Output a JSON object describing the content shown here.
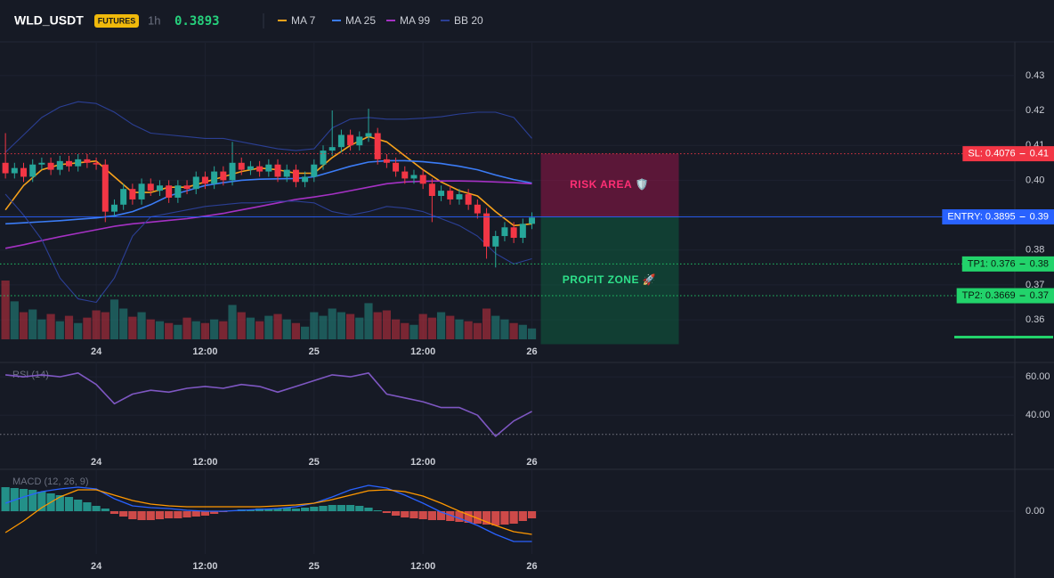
{
  "header": {
    "symbol": "WLD_USDT",
    "badge": "FUTURES",
    "interval": "1h",
    "price": 0.3893
  },
  "chart_data": [
    {
      "type": "candlestick",
      "x": [
        -10,
        -9,
        -8,
        -7,
        -6,
        -5,
        -4,
        -3,
        -2,
        -1,
        0,
        1,
        2,
        3,
        4,
        5,
        6,
        7,
        8,
        9,
        10,
        11,
        12,
        13,
        14,
        15,
        16,
        17,
        18,
        19,
        20,
        21,
        22,
        23,
        24,
        25,
        26,
        27,
        28,
        29,
        30,
        31,
        32,
        33,
        34,
        35,
        36,
        37,
        38,
        39,
        40,
        41,
        42,
        43,
        44,
        45,
        46,
        47,
        48
      ],
      "open": [
        0.405,
        0.402,
        0.4035,
        0.401,
        0.4045,
        0.405,
        0.403,
        0.4055,
        0.404,
        0.406,
        0.405,
        0.4045,
        0.391,
        0.393,
        0.3975,
        0.3945,
        0.399,
        0.397,
        0.3985,
        0.395,
        0.3985,
        0.3975,
        0.401,
        0.399,
        0.4025,
        0.4,
        0.405,
        0.403,
        0.404,
        0.4025,
        0.4045,
        0.401,
        0.403,
        0.3995,
        0.401,
        0.4045,
        0.4085,
        0.4095,
        0.413,
        0.41,
        0.4125,
        0.4135,
        0.406,
        0.405,
        0.4025,
        0.4005,
        0.4015,
        0.399,
        0.3955,
        0.397,
        0.3945,
        0.396,
        0.393,
        0.3905,
        0.381,
        0.384,
        0.3865,
        0.3835,
        0.3875
      ],
      "high": [
        0.4135,
        0.405,
        0.405,
        0.406,
        0.4065,
        0.4065,
        0.407,
        0.407,
        0.4075,
        0.4075,
        0.4065,
        0.406,
        0.3945,
        0.399,
        0.399,
        0.4005,
        0.4005,
        0.4,
        0.4,
        0.4,
        0.4,
        0.4025,
        0.4025,
        0.404,
        0.404,
        0.411,
        0.4065,
        0.4055,
        0.4055,
        0.406,
        0.406,
        0.4045,
        0.4045,
        0.4025,
        0.406,
        0.41,
        0.42,
        0.4145,
        0.4145,
        0.414,
        0.4205,
        0.415,
        0.4075,
        0.4065,
        0.404,
        0.403,
        0.403,
        0.4005,
        0.3985,
        0.3985,
        0.3975,
        0.3975,
        0.3945,
        0.392,
        0.3855,
        0.388,
        0.388,
        0.389,
        0.3908
      ],
      "low": [
        0.4005,
        0.4005,
        0.3995,
        0.3995,
        0.403,
        0.4015,
        0.4015,
        0.4025,
        0.4025,
        0.4035,
        0.403,
        0.388,
        0.3895,
        0.3915,
        0.393,
        0.393,
        0.3955,
        0.3955,
        0.3935,
        0.3935,
        0.396,
        0.396,
        0.3975,
        0.3975,
        0.3985,
        0.3985,
        0.4015,
        0.4015,
        0.401,
        0.401,
        0.3995,
        0.3995,
        0.398,
        0.398,
        0.3995,
        0.403,
        0.407,
        0.408,
        0.4085,
        0.4085,
        0.411,
        0.4045,
        0.4035,
        0.401,
        0.399,
        0.399,
        0.3975,
        0.388,
        0.394,
        0.393,
        0.393,
        0.3915,
        0.389,
        0.3775,
        0.375,
        0.3825,
        0.382,
        0.382,
        0.386
      ],
      "close": [
        0.402,
        0.4035,
        0.401,
        0.4045,
        0.405,
        0.403,
        0.4055,
        0.404,
        0.406,
        0.405,
        0.4045,
        0.391,
        0.393,
        0.3975,
        0.3945,
        0.399,
        0.397,
        0.3985,
        0.395,
        0.3985,
        0.3975,
        0.401,
        0.399,
        0.4025,
        0.4,
        0.405,
        0.403,
        0.404,
        0.4025,
        0.4045,
        0.401,
        0.403,
        0.3995,
        0.401,
        0.4045,
        0.4085,
        0.4095,
        0.413,
        0.41,
        0.4125,
        0.4135,
        0.406,
        0.405,
        0.4025,
        0.4005,
        0.4015,
        0.399,
        0.3955,
        0.397,
        0.3945,
        0.396,
        0.393,
        0.3905,
        0.381,
        0.384,
        0.3865,
        0.3835,
        0.3875,
        0.3893
      ],
      "volume": [
        65,
        42,
        30,
        33,
        22,
        28,
        20,
        26,
        18,
        24,
        32,
        30,
        44,
        34,
        25,
        30,
        22,
        20,
        18,
        16,
        24,
        20,
        18,
        22,
        20,
        38,
        30,
        24,
        20,
        26,
        28,
        22,
        18,
        14,
        30,
        26,
        34,
        30,
        28,
        24,
        40,
        30,
        32,
        22,
        18,
        16,
        28,
        24,
        30,
        26,
        22,
        20,
        18,
        34,
        26,
        22,
        18,
        16,
        12
      ],
      "up_color": "#26a69a",
      "down_color": "#f23645",
      "series": [
        {
          "name": "MA 7",
          "color": "#f7a21b",
          "x": [
            -10,
            -8,
            -6,
            -4,
            -2,
            0,
            2,
            4,
            6,
            8,
            10,
            12,
            14,
            16,
            18,
            20,
            22,
            24,
            26,
            28,
            30,
            32,
            34,
            36,
            38,
            40,
            42,
            44,
            46,
            48
          ],
          "values": [
            0.3915,
            0.3985,
            0.403,
            0.4045,
            0.405,
            0.4055,
            0.401,
            0.3965,
            0.3965,
            0.398,
            0.398,
            0.3995,
            0.401,
            0.4025,
            0.4035,
            0.403,
            0.402,
            0.402,
            0.4065,
            0.41,
            0.4125,
            0.411,
            0.407,
            0.403,
            0.3995,
            0.397,
            0.3955,
            0.391,
            0.387,
            0.3875
          ]
        },
        {
          "name": "MA 25",
          "color": "#3b7cf6",
          "x": [
            -10,
            -8,
            -6,
            -4,
            -2,
            0,
            2,
            4,
            6,
            8,
            10,
            12,
            14,
            16,
            18,
            20,
            22,
            24,
            26,
            28,
            30,
            32,
            34,
            36,
            38,
            40,
            42,
            44,
            46,
            48
          ],
          "values": [
            0.3875,
            0.3878,
            0.3881,
            0.3884,
            0.3888,
            0.3892,
            0.3898,
            0.391,
            0.393,
            0.3955,
            0.397,
            0.3985,
            0.3993,
            0.4,
            0.4003,
            0.4004,
            0.4005,
            0.401,
            0.4025,
            0.404,
            0.4052,
            0.4056,
            0.4056,
            0.4053,
            0.4048,
            0.404,
            0.403,
            0.4015,
            0.4002,
            0.3992
          ]
        },
        {
          "name": "MA 99",
          "color": "#a531c4",
          "x": [
            -10,
            -8,
            -6,
            -4,
            -2,
            0,
            2,
            4,
            6,
            8,
            10,
            12,
            14,
            16,
            18,
            20,
            22,
            24,
            26,
            28,
            30,
            32,
            34,
            36,
            38,
            40,
            42,
            44,
            46,
            48
          ],
          "values": [
            0.3805,
            0.3815,
            0.3827,
            0.3838,
            0.3848,
            0.3858,
            0.3868,
            0.3875,
            0.388,
            0.3885,
            0.389,
            0.3897,
            0.3905,
            0.3915,
            0.3925,
            0.3935,
            0.3945,
            0.3952,
            0.396,
            0.397,
            0.398,
            0.399,
            0.3995,
            0.3997,
            0.3998,
            0.3998,
            0.3997,
            0.3995,
            0.3993,
            0.399
          ]
        },
        {
          "name": "BB 20",
          "color": "#2b3f94",
          "x": [
            -10,
            -8,
            -6,
            -4,
            -2,
            0,
            2,
            4,
            6,
            8,
            10,
            12,
            14,
            16,
            18,
            20,
            22,
            24,
            26,
            28,
            30,
            32,
            34,
            36,
            38,
            40,
            42,
            44,
            46,
            48
          ],
          "upper": [
            0.408,
            0.413,
            0.418,
            0.421,
            0.4225,
            0.422,
            0.4195,
            0.416,
            0.4135,
            0.413,
            0.4125,
            0.412,
            0.412,
            0.411,
            0.41,
            0.409,
            0.4085,
            0.409,
            0.415,
            0.4175,
            0.418,
            0.4175,
            0.4175,
            0.4178,
            0.4182,
            0.419,
            0.4195,
            0.4195,
            0.418,
            0.412
          ],
          "lower": [
            0.396,
            0.39,
            0.383,
            0.372,
            0.366,
            0.365,
            0.372,
            0.384,
            0.3895,
            0.3905,
            0.3915,
            0.3925,
            0.393,
            0.3935,
            0.3935,
            0.394,
            0.394,
            0.3935,
            0.391,
            0.39,
            0.391,
            0.3925,
            0.392,
            0.391,
            0.389,
            0.387,
            0.384,
            0.379,
            0.376,
            0.3775
          ]
        }
      ],
      "xlim": [
        -10.6,
        101.2
      ],
      "xticks": [
        {
          "value": 0,
          "label": "24"
        },
        {
          "value": 12,
          "label": "12:00"
        },
        {
          "value": 24,
          "label": "25"
        },
        {
          "value": 36,
          "label": "12:00"
        },
        {
          "value": 48,
          "label": "26"
        }
      ],
      "ylim": [
        0.3544,
        0.4389
      ],
      "yticks": [
        {
          "value": 0.36,
          "label": "0.36"
        },
        {
          "value": 0.37,
          "label": "0.37"
        },
        {
          "value": 0.38,
          "label": "0.38"
        },
        {
          "value": 0.39,
          "label": "0.39"
        },
        {
          "value": 0.4,
          "label": "0.40"
        },
        {
          "value": 0.41,
          "label": "0.41"
        },
        {
          "value": 0.42,
          "label": "0.42"
        },
        {
          "value": 0.43,
          "label": "0.43"
        }
      ],
      "grid": true,
      "levels": [
        {
          "label": "SL: 0.4076",
          "value": 0.4076,
          "axis_label": "0.41",
          "color": "#f23645",
          "text_color": "#ffffff",
          "style": "dotted"
        },
        {
          "label": "ENTRY: 0.3895",
          "value": 0.3895,
          "axis_label": "0.39",
          "color": "#2962ff",
          "text_color": "#ffffff",
          "style": "solid"
        },
        {
          "label": "TP1: 0.376",
          "value": 0.376,
          "axis_label": "0.38",
          "color": "#22d36b",
          "text_color": "#0b1a10",
          "style": "dotted"
        },
        {
          "label": "TP2: 0.3669",
          "value": 0.3669,
          "axis_label": "0.37",
          "color": "#22d36b",
          "text_color": "#0b1a10",
          "style": "dotted"
        }
      ],
      "zones": [
        {
          "label": "RISK AREA 🛡️",
          "range": [
            0.3895,
            0.4076
          ],
          "color": "#b0134f",
          "text_color": "#ff2e74"
        },
        {
          "label": "PROFIT ZONE 🚀",
          "range": [
            0.353,
            0.3895
          ],
          "color": "#0b6b45",
          "text_color": "#2ee08a"
        }
      ]
    },
    {
      "type": "line",
      "title": "RSI (14)",
      "x": [
        -10,
        -8,
        -6,
        -4,
        -2,
        0,
        2,
        4,
        6,
        8,
        10,
        12,
        14,
        16,
        18,
        20,
        22,
        24,
        26,
        28,
        30,
        32,
        34,
        36,
        38,
        40,
        42,
        44,
        46,
        48
      ],
      "values": [
        61,
        60,
        61,
        60,
        62,
        56,
        46,
        51,
        53,
        52,
        54,
        55,
        54,
        56,
        55,
        52,
        55,
        58,
        61,
        60,
        62,
        51,
        49,
        47,
        44,
        44,
        40,
        29,
        37,
        42
      ],
      "color": "#7e57c2",
      "xlim": [
        -10.6,
        101.2
      ],
      "xticks": [
        {
          "value": 0,
          "label": "24"
        },
        {
          "value": 12,
          "label": "12:00"
        },
        {
          "value": 24,
          "label": "25"
        },
        {
          "value": 36,
          "label": "12:00"
        },
        {
          "value": 48,
          "label": "26"
        }
      ],
      "ylim": [
        22,
        67
      ],
      "yticks": [
        {
          "value": 40,
          "label": "40.00"
        },
        {
          "value": 60,
          "label": "60.00"
        }
      ],
      "hlines": [
        30
      ],
      "grid": true
    },
    {
      "type": "macd",
      "title": "MACD (12, 26, 9)",
      "x": [
        -10,
        -8,
        -6,
        -4,
        -2,
        0,
        2,
        4,
        6,
        8,
        10,
        12,
        14,
        16,
        18,
        20,
        22,
        24,
        26,
        28,
        30,
        32,
        34,
        36,
        38,
        40,
        42,
        44,
        46,
        48
      ],
      "macd": [
        0.0009,
        0.0016,
        0.0022,
        0.0025,
        0.0027,
        0.0025,
        0.0014,
        0.0006,
        0.0004,
        0.0003,
        0.0001,
        0,
        0,
        0.0001,
        0.0002,
        0.0003,
        0.0005,
        0.0009,
        0.0016,
        0.0024,
        0.0029,
        0.0026,
        0.0018,
        0.0009,
        -0.0001,
        -0.0008,
        -0.0016,
        -0.0026,
        -0.0034,
        -0.0034
      ],
      "signal": [
        -0.0024,
        -0.0011,
        0.0004,
        0.0016,
        0.0024,
        0.0024,
        0.0018,
        0.0012,
        0.0008,
        0.0006,
        0.0005,
        0.0005,
        0.0005,
        0.0005,
        0.0005,
        0.0006,
        0.0007,
        0.0009,
        0.0013,
        0.0018,
        0.0023,
        0.0024,
        0.0022,
        0.0017,
        0.0009,
        0,
        -0.0008,
        -0.0016,
        -0.0023,
        -0.0026
      ],
      "hist_x": [
        -10,
        -9,
        -8,
        -7,
        -6,
        -5,
        -4,
        -3,
        -2,
        -1,
        0,
        1,
        2,
        3,
        4,
        5,
        6,
        7,
        8,
        9,
        10,
        11,
        12,
        13,
        14,
        15,
        16,
        17,
        18,
        19,
        20,
        21,
        22,
        23,
        24,
        25,
        26,
        27,
        28,
        29,
        30,
        31,
        32,
        33,
        34,
        35,
        36,
        37,
        38,
        39,
        40,
        41,
        42,
        43,
        44,
        45,
        46,
        47,
        48
      ],
      "histogram": [
        0.0027,
        0.0026,
        0.0025,
        0.0024,
        0.0022,
        0.002,
        0.0018,
        0.0016,
        0.0013,
        0.001,
        0.0006,
        0.0003,
        -0.0003,
        -0.0006,
        -0.0009,
        -0.001,
        -0.001,
        -0.0009,
        -0.0008,
        -0.0008,
        -0.0007,
        -0.0006,
        -0.0005,
        -0.0003,
        -0.0001,
        0.0001,
        0.0002,
        0.0002,
        0.0003,
        0.0003,
        0.0003,
        0.0004,
        0.0003,
        0.0004,
        0.0005,
        0.0006,
        0.0007,
        0.0007,
        0.0007,
        0.0006,
        0.0004,
        0.0001,
        -0.0002,
        -0.0005,
        -0.0007,
        -0.0008,
        -0.0009,
        -0.001,
        -0.001,
        -0.0011,
        -0.0012,
        -0.0013,
        -0.0014,
        -0.0015,
        -0.0016,
        -0.0015,
        -0.0014,
        -0.0011,
        -0.0008
      ],
      "macd_color": "#2962ff",
      "signal_color": "#ff9800",
      "hist_up_color": "#26a69a",
      "hist_down_color": "#ef5350",
      "xlim": [
        -10.6,
        101.2
      ],
      "xticks": [
        {
          "value": 0,
          "label": "24"
        },
        {
          "value": 12,
          "label": "12:00"
        },
        {
          "value": 24,
          "label": "25"
        },
        {
          "value": 36,
          "label": "12:00"
        },
        {
          "value": 48,
          "label": "26"
        }
      ],
      "ylim": [
        -0.0048,
        0.0046
      ],
      "yticks": [
        {
          "value": 0,
          "label": "0.00"
        }
      ],
      "grid": true
    }
  ]
}
